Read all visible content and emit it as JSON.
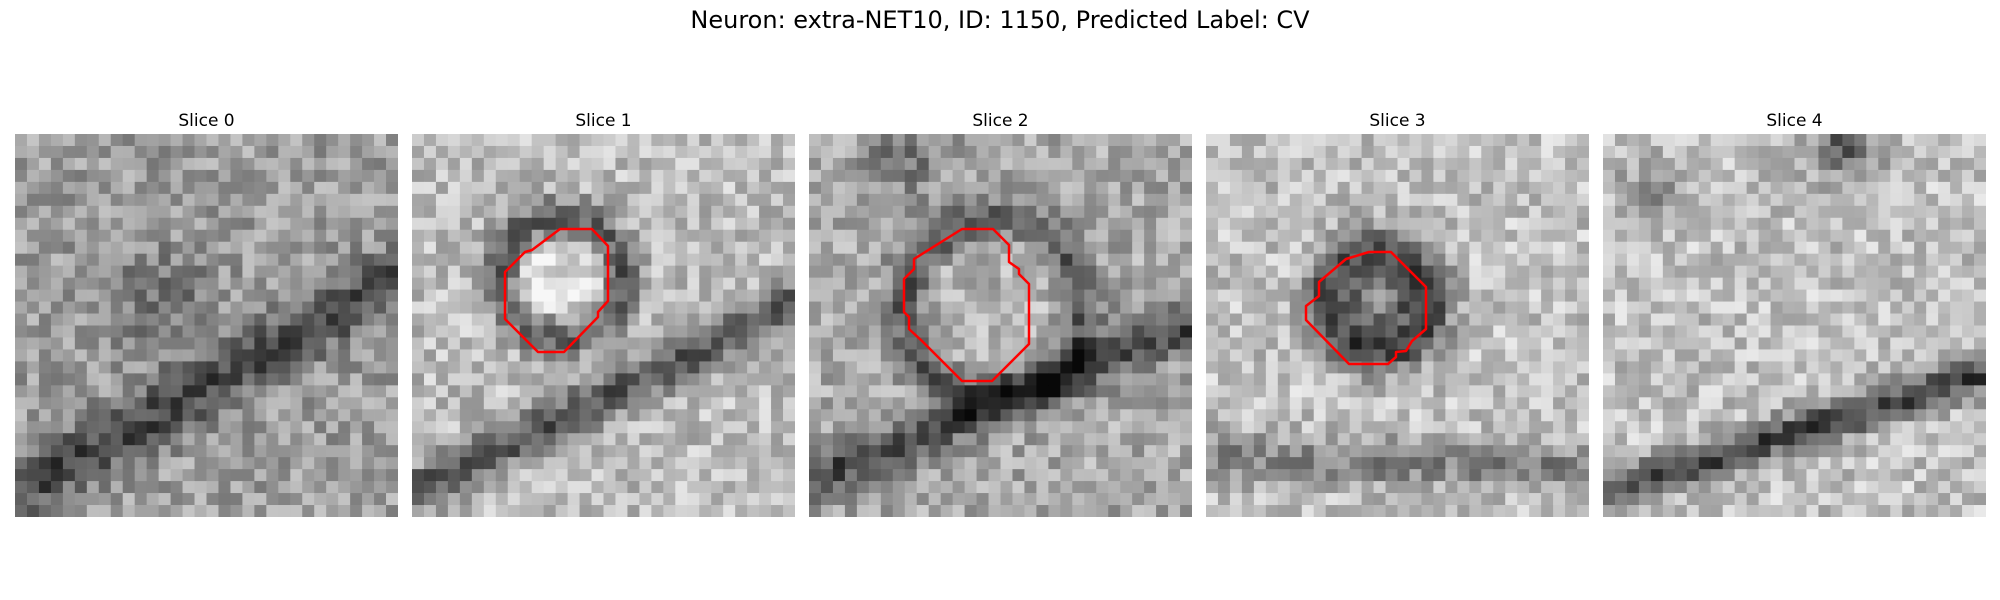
{
  "figure": {
    "title": "Neuron: extra-NET10, ID: 1150, Predicted Label: CV"
  },
  "colors": {
    "contour": "#ff0000",
    "background": "#ffffff"
  },
  "slices": [
    {
      "label": "Slice 0",
      "image": "grayscale microscopy patch, dark curved band lower area",
      "has_contour": false
    },
    {
      "label": "Slice 1",
      "image": "grayscale microscopy patch with dark ring vesicle",
      "has_contour": true
    },
    {
      "label": "Slice 2",
      "image": "grayscale microscopy patch with large round vesicle",
      "has_contour": true
    },
    {
      "label": "Slice 3",
      "image": "grayscale microscopy patch with dark vesicle",
      "has_contour": true
    },
    {
      "label": "Slice 4",
      "image": "grayscale microscopy patch, dark band at bottom",
      "has_contour": false
    }
  ]
}
